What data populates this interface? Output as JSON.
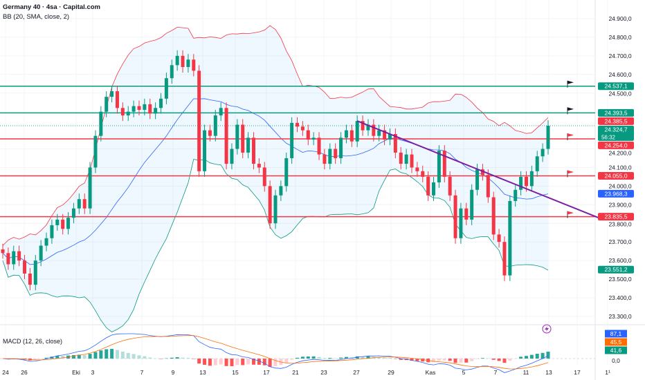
{
  "header": {
    "title": "Germany 40 · 4sa · Capital.com",
    "indicator": "BB (20, SMA, close, 2)"
  },
  "macd": {
    "label": "MACD (12, 26, close)",
    "values": {
      "macd": "87,1",
      "signal": "45,5",
      "histogram": "41,6"
    },
    "zero": "0,0"
  },
  "colors": {
    "up": "#089981",
    "down": "#f23645",
    "basis": "#2962ff",
    "trend": "#7b1fa2",
    "macd": "#2962ff",
    "signal": "#ff6d00"
  },
  "chart_data": {
    "type": "candlestick",
    "title": "Germany 40 · 4sa · Capital.com",
    "ylim": [
      23250,
      24960
    ],
    "y_ticks": [
      "24.900,0",
      "24.800,0",
      "24.700,0",
      "24.600,0",
      "24.500,0",
      "24.200,0",
      "24.100,0",
      "24.000,0",
      "23.900,0",
      "23.800,0",
      "23.700,0",
      "23.600,0",
      "23.500,0",
      "23.400,0",
      "23.300,0"
    ],
    "y_tick_values": [
      24900,
      24800,
      24700,
      24600,
      24500,
      24200,
      24100,
      24000,
      23900,
      23800,
      23700,
      23600,
      23500,
      23400,
      23300
    ],
    "x_ticks": [
      "24",
      "26",
      "Eki",
      "3",
      "7",
      "9",
      "13",
      "15",
      "17",
      "21",
      "23",
      "27",
      "29",
      "Kas",
      "5",
      "7",
      "11",
      "13",
      "17",
      "1¹"
    ],
    "closes": [
      23640,
      23580,
      23650,
      23600,
      23530,
      23470,
      23600,
      23680,
      23720,
      23790,
      23820,
      23770,
      23830,
      23880,
      23930,
      23880,
      24100,
      24270,
      24400,
      24480,
      24510,
      24420,
      24380,
      24400,
      24430,
      24410,
      24440,
      24390,
      24420,
      24470,
      24580,
      24650,
      24700,
      24640,
      24680,
      24620,
      24080,
      24300,
      24270,
      24380,
      24420,
      24120,
      24200,
      24330,
      24180,
      24260,
      24120,
      24100,
      24000,
      23800,
      23950,
      24000,
      24150,
      24340,
      24320,
      24300,
      24250,
      24260,
      24170,
      24120,
      24200,
      24150,
      24260,
      24300,
      24240,
      24350,
      24300,
      24330,
      24270,
      24300,
      24250,
      24280,
      24180,
      24120,
      24170,
      24100,
      24080,
      24050,
      23950,
      24020,
      24190,
      24050,
      23950,
      23720,
      23880,
      23820,
      23980,
      24090,
      24060,
      23940,
      23740,
      23700,
      23520,
      23920,
      23980,
      24050,
      24000,
      24080,
      24160,
      24200,
      24324.7
    ],
    "levels": [
      {
        "price": 24537.1,
        "label": "24.537,1",
        "color": "#089981",
        "flag": "black"
      },
      {
        "price": 24393.5,
        "label": "24.393,5",
        "color": "#089981",
        "flag": "black"
      },
      {
        "price": 24254.0,
        "label": "24.254,0",
        "color": "#f23645",
        "flag": "red"
      },
      {
        "price": 24055.0,
        "label": "24.055,0",
        "color": "#f23645",
        "flag": "red"
      },
      {
        "price": 23835.5,
        "label": "23.835,5",
        "color": "#f23645",
        "flag": "red"
      }
    ],
    "price_labels": [
      {
        "price": 24385.5,
        "label": "24.385,5",
        "color": "#f23645"
      },
      {
        "price": 24324.7,
        "label": "24.324,7",
        "sub": "56:32",
        "color": "#089981"
      },
      {
        "price": 23968.3,
        "label": "23.968,3",
        "color": "#2962ff"
      },
      {
        "price": 23551.2,
        "label": "23.551,2",
        "color": "#089981"
      }
    ],
    "current_price": 24324.7,
    "countdown": "56:32",
    "trendline": {
      "from": {
        "candle": 65,
        "price": 24350
      },
      "to": {
        "price": 23830
      }
    }
  }
}
